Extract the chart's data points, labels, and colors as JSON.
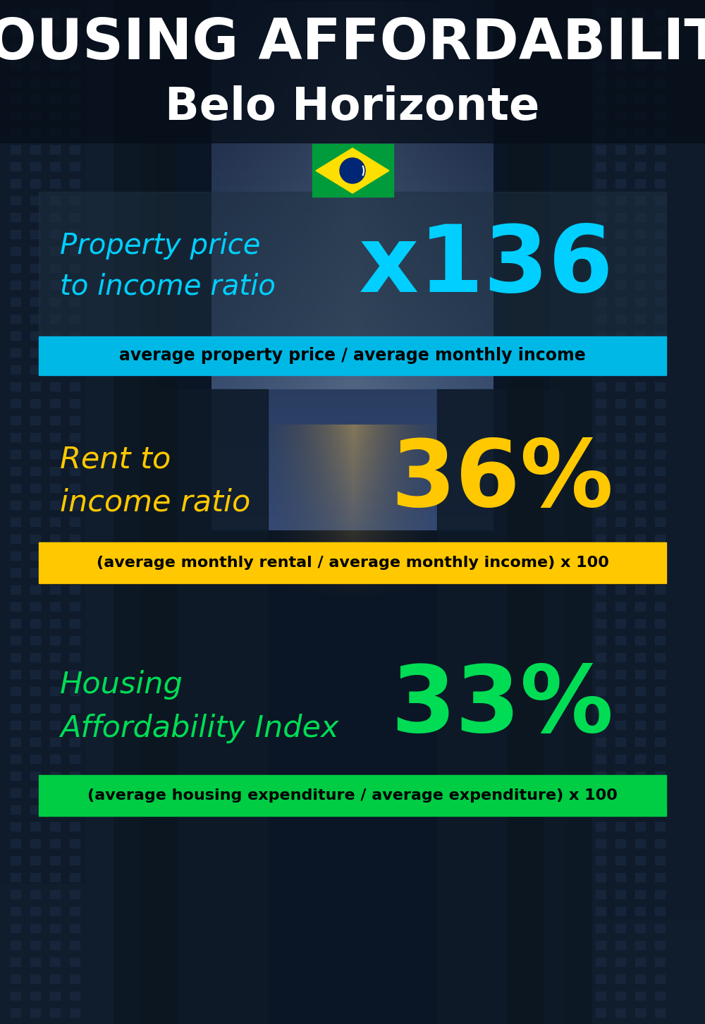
{
  "title_line1": "HOUSING AFFORDABILITY",
  "title_line2": "Belo Horizonte",
  "bg_color": "#0a1020",
  "section1_label": "Property price\nto income ratio",
  "section1_value": "x136",
  "section1_label_color": "#00cfff",
  "section1_value_color": "#00cfff",
  "section1_bar_text": "average property price / average monthly income",
  "section1_bar_color": "#00b8e6",
  "section1_bar_text_color": "#000000",
  "section2_label": "Rent to\nincome ratio",
  "section2_value": "36%",
  "section2_label_color": "#ffc800",
  "section2_value_color": "#ffc800",
  "section2_bar_text": "(average monthly rental / average monthly income) x 100",
  "section2_bar_color": "#ffc800",
  "section2_bar_text_color": "#000000",
  "section3_label": "Housing\nAffordability Index",
  "section3_value": "33%",
  "section3_label_color": "#00dd55",
  "section3_value_color": "#00dd55",
  "section3_bar_text": "(average housing expenditure / average expenditure) x 100",
  "section3_bar_color": "#00cc44",
  "section3_bar_text_color": "#000000",
  "flag_green": "#009c3b",
  "flag_yellow": "#fedf00",
  "flag_blue": "#002776"
}
